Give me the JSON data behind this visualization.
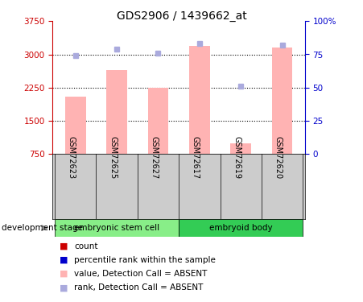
{
  "title": "GDS2906 / 1439662_at",
  "samples": [
    "GSM72623",
    "GSM72625",
    "GSM72627",
    "GSM72617",
    "GSM72619",
    "GSM72620"
  ],
  "bar_values": [
    2050,
    2650,
    2250,
    3200,
    1000,
    3150
  ],
  "rank_values": [
    74,
    79,
    76,
    83,
    51,
    82
  ],
  "ylim_left": [
    750,
    3750
  ],
  "ylim_right": [
    0,
    100
  ],
  "yticks_left": [
    750,
    1500,
    2250,
    3000,
    3750
  ],
  "yticks_right": [
    0,
    25,
    50,
    75,
    100
  ],
  "ytick_labels_right": [
    "0",
    "25",
    "50",
    "75",
    "100%"
  ],
  "bar_color": "#ffb3b3",
  "rank_color": "#aaaadd",
  "bar_bottom": 750,
  "groups": [
    {
      "label": "embryonic stem cell",
      "indices": [
        0,
        1,
        2
      ],
      "color": "#88ee88"
    },
    {
      "label": "embryoid body",
      "indices": [
        3,
        4,
        5
      ],
      "color": "#33cc55"
    }
  ],
  "group_label_text": "development stage",
  "legend_items": [
    {
      "color": "#cc0000",
      "label": "count"
    },
    {
      "color": "#0000cc",
      "label": "percentile rank within the sample"
    },
    {
      "color": "#ffb3b3",
      "label": "value, Detection Call = ABSENT"
    },
    {
      "color": "#aaaadd",
      "label": "rank, Detection Call = ABSENT"
    }
  ],
  "axis_left_color": "#cc0000",
  "axis_right_color": "#0000cc",
  "dotted_grid": [
    1500,
    2250,
    3000
  ],
  "label_bg_color": "#cccccc",
  "fig_width": 4.51,
  "fig_height": 3.75,
  "dpi": 100
}
